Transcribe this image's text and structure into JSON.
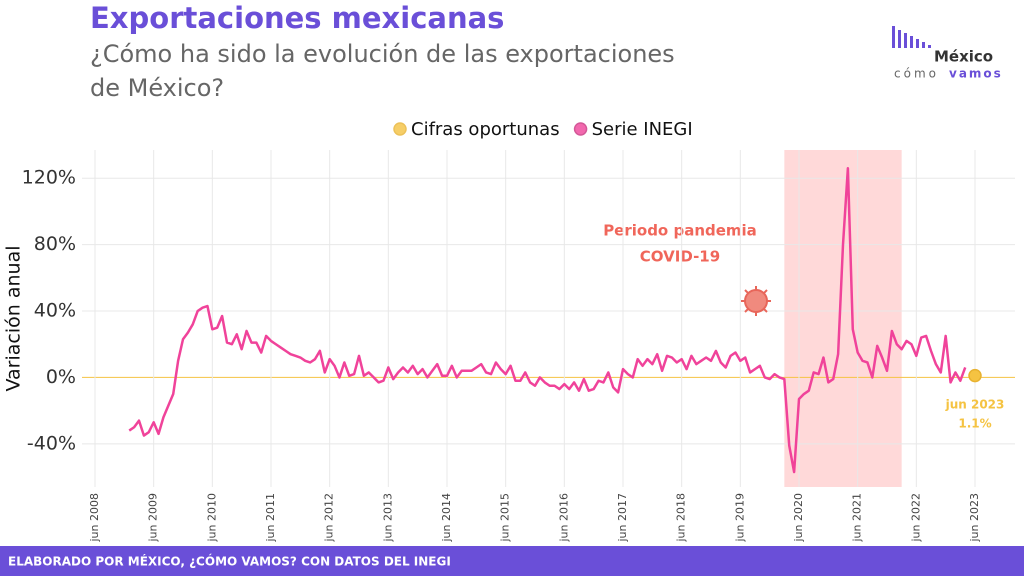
{
  "header": {
    "title": "Exportaciones mexicanas",
    "subtitle": [
      "¿Cómo ha sido la evolución de las exportaciones",
      "de México?"
    ]
  },
  "logo": {
    "name": "México",
    "tag_a": "cómo",
    "tag_b": "vamos"
  },
  "footer": "ELABORADO POR MÉXICO, ¿CÓMO VAMOS? CON DATOS DEL INEGI",
  "chart_data": {
    "type": "line",
    "y_label": "Variación anual",
    "categories": [
      "jun 2008",
      null,
      null,
      null,
      null,
      null,
      null,
      null,
      null,
      null,
      null,
      null,
      "jun 2009",
      null,
      null,
      null,
      null,
      null,
      null,
      null,
      null,
      null,
      null,
      null,
      "jun 2010",
      null,
      null,
      null,
      null,
      null,
      null,
      null,
      null,
      null,
      null,
      null,
      "jun 2011",
      null,
      null,
      null,
      null,
      null,
      null,
      null,
      null,
      null,
      null,
      null,
      "jun 2012",
      null,
      null,
      null,
      null,
      null,
      null,
      null,
      null,
      null,
      null,
      null,
      "jun 2013",
      null,
      null,
      null,
      null,
      null,
      null,
      null,
      null,
      null,
      null,
      null,
      "jun 2014",
      null,
      null,
      null,
      null,
      null,
      null,
      null,
      null,
      null,
      null,
      null,
      "jun 2015",
      null,
      null,
      null,
      null,
      null,
      null,
      null,
      null,
      null,
      null,
      null,
      "jun 2016",
      null,
      null,
      null,
      null,
      null,
      null,
      null,
      null,
      null,
      null,
      null,
      "jun 2017",
      null,
      null,
      null,
      null,
      null,
      null,
      null,
      null,
      null,
      null,
      null,
      "jun 2018",
      null,
      null,
      null,
      null,
      null,
      null,
      null,
      null,
      null,
      null,
      null,
      "jun 2019",
      null,
      null,
      null,
      null,
      null,
      null,
      null,
      null,
      null,
      null,
      null,
      "jun 2020",
      null,
      null,
      null,
      null,
      null,
      null,
      null,
      null,
      null,
      null,
      null,
      "jun 2021",
      null,
      null,
      null,
      null,
      null,
      null,
      null,
      null,
      null,
      null,
      null,
      "jun 2022",
      null,
      null,
      null,
      null,
      null,
      null,
      null,
      null,
      null,
      null,
      null,
      "jun 2023"
    ],
    "series": [
      {
        "name": "Cifras oportunas",
        "color": "#f5c342",
        "values": [
          null,
          null,
          null,
          null,
          null,
          null,
          null,
          null,
          null,
          null,
          null,
          null,
          null,
          null,
          null,
          null,
          null,
          null,
          null,
          null,
          null,
          null,
          null,
          null,
          null,
          null,
          null,
          null,
          null,
          null,
          null,
          null,
          null,
          null,
          null,
          null,
          null,
          null,
          null,
          null,
          null,
          null,
          null,
          null,
          null,
          null,
          null,
          null,
          null,
          null,
          null,
          null,
          null,
          null,
          null,
          null,
          null,
          null,
          null,
          null,
          null,
          null,
          null,
          null,
          null,
          null,
          null,
          null,
          null,
          null,
          null,
          null,
          null,
          null,
          null,
          null,
          null,
          null,
          null,
          null,
          null,
          null,
          null,
          null,
          null,
          null,
          null,
          null,
          null,
          null,
          null,
          null,
          null,
          null,
          null,
          null,
          null,
          null,
          null,
          null,
          null,
          null,
          null,
          null,
          null,
          null,
          null,
          null,
          null,
          null,
          null,
          null,
          null,
          null,
          null,
          null,
          null,
          null,
          null,
          null,
          null,
          null,
          null,
          null,
          null,
          null,
          null,
          null,
          null,
          null,
          null,
          null,
          null,
          null,
          null,
          null,
          null,
          null,
          null,
          null,
          null,
          null,
          null,
          null,
          null,
          null,
          null,
          null,
          null,
          null,
          null,
          null,
          null,
          null,
          null,
          null,
          null,
          null,
          null,
          null,
          null,
          null,
          null,
          null,
          null,
          null,
          null,
          null,
          null,
          null,
          null,
          null,
          null,
          null,
          null,
          null,
          null,
          null,
          null,
          null,
          1.1
        ],
        "value_labels": [
          null,
          null,
          null,
          null,
          null,
          null,
          null,
          null,
          null,
          null,
          null,
          null,
          null,
          null,
          null,
          null,
          null,
          null,
          null,
          null,
          null,
          null,
          null,
          null,
          null,
          null,
          null,
          null,
          null,
          null,
          null,
          null,
          null,
          null,
          null,
          null,
          null,
          null,
          null,
          null,
          null,
          null,
          null,
          null,
          null,
          null,
          null,
          null,
          null,
          null,
          null,
          null,
          null,
          null,
          null,
          null,
          null,
          null,
          null,
          null,
          null,
          null,
          null,
          null,
          null,
          null,
          null,
          null,
          null,
          null,
          null,
          null,
          null,
          null,
          null,
          null,
          null,
          null,
          null,
          null,
          null,
          null,
          null,
          null,
          null,
          null,
          null,
          null,
          null,
          null,
          null,
          null,
          null,
          null,
          null,
          null,
          null,
          null,
          null,
          null,
          null,
          null,
          null,
          null,
          null,
          null,
          null,
          null,
          null,
          null,
          null,
          null,
          null,
          null,
          null,
          null,
          null,
          null,
          null,
          null,
          null,
          null,
          null,
          null,
          null,
          null,
          null,
          null,
          null,
          null,
          null,
          null,
          null,
          null,
          null,
          null,
          null,
          null,
          null,
          null,
          null,
          null,
          null,
          null,
          null,
          null,
          null,
          null,
          null,
          null,
          null,
          null,
          null,
          null,
          null,
          null,
          null,
          null,
          null,
          null,
          null,
          null,
          null,
          null,
          null,
          null,
          null,
          null,
          null,
          null,
          null,
          null,
          null,
          null,
          null,
          null,
          null,
          null,
          null,
          null,
          "1.1%"
        ]
      },
      {
        "name": "Serie INEGI",
        "color": "#f0439a",
        "values": [
          null,
          null,
          null,
          null,
          null,
          null,
          null,
          -32,
          -30,
          -26,
          -35,
          -33,
          -27,
          -34,
          -24,
          -17,
          -10,
          10,
          23,
          27,
          32,
          40,
          42,
          43,
          29,
          30,
          37,
          21,
          20,
          26,
          17,
          28,
          21,
          21,
          15,
          25,
          22,
          20,
          18,
          16,
          14,
          13,
          12,
          10,
          9,
          11,
          16,
          3,
          11,
          7,
          0,
          9,
          1,
          2,
          13,
          1,
          3,
          0,
          -3,
          -2,
          6,
          -1,
          3,
          6,
          3,
          7,
          2,
          5,
          0,
          4,
          8,
          1,
          1,
          7,
          0,
          4,
          4,
          4,
          6,
          8,
          3,
          2,
          9,
          5,
          2,
          7,
          -2,
          -2,
          3,
          -3,
          -5,
          0,
          -3,
          -5,
          -5,
          -7,
          -4,
          -7,
          -3,
          -8,
          -1,
          -8,
          -7,
          -2,
          -3,
          3,
          -6,
          -9,
          5,
          2,
          0,
          11,
          7,
          11,
          8,
          14,
          4,
          13,
          12,
          9,
          11,
          5,
          13,
          8,
          10,
          12,
          10,
          16,
          9,
          6,
          13,
          15,
          10,
          12,
          3,
          5,
          7,
          0,
          -1,
          2,
          0,
          -1,
          -41,
          -57,
          -13,
          -10,
          -8,
          3,
          2,
          12,
          -3,
          -1,
          14,
          80,
          126,
          29,
          15,
          10,
          9,
          0,
          19,
          12,
          4,
          28,
          20,
          17,
          22,
          20,
          13,
          24,
          25,
          16,
          8,
          3,
          25,
          -3,
          3,
          -2,
          6,
          null,
          null
        ]
      }
    ],
    "ylim": [
      -66,
      137
    ],
    "yticks": [
      {
        "value": -40,
        "label": "-40%"
      },
      {
        "value": 0,
        "label": "0%"
      },
      {
        "value": 40,
        "label": "40%"
      },
      {
        "value": 80,
        "label": "80%"
      },
      {
        "value": 120,
        "label": "120%"
      }
    ],
    "grid": true,
    "legend": "top",
    "shade": {
      "from": 141,
      "to": 165,
      "color": "#ffd9d9",
      "label": [
        "Periodo pandemia",
        "COVID-19"
      ]
    }
  }
}
